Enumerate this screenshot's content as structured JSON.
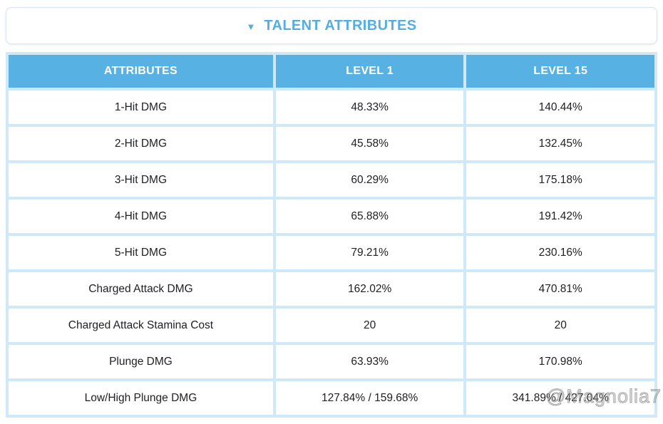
{
  "section": {
    "title": "TALENT ATTRIBUTES",
    "collapse_icon": "caret-down"
  },
  "table": {
    "columns": [
      "ATTRIBUTES",
      "LEVEL 1",
      "LEVEL 15"
    ],
    "rows": [
      {
        "attribute": "1-Hit DMG",
        "level1": "48.33%",
        "level15": "140.44%"
      },
      {
        "attribute": "2-Hit DMG",
        "level1": "45.58%",
        "level15": "132.45%"
      },
      {
        "attribute": "3-Hit DMG",
        "level1": "60.29%",
        "level15": "175.18%"
      },
      {
        "attribute": "4-Hit DMG",
        "level1": "65.88%",
        "level15": "191.42%"
      },
      {
        "attribute": "5-Hit DMG",
        "level1": "79.21%",
        "level15": "230.16%"
      },
      {
        "attribute": "Charged Attack DMG",
        "level1": "162.02%",
        "level15": "470.81%"
      },
      {
        "attribute": "Charged Attack Stamina Cost",
        "level1": "20",
        "level15": "20"
      },
      {
        "attribute": "Plunge DMG",
        "level1": "63.93%",
        "level15": "170.98%"
      },
      {
        "attribute": "Low/High Plunge DMG",
        "level1": "127.84% / 159.68%",
        "level15": "341.89% / 427.04%"
      }
    ]
  },
  "watermark": "@Magnolia7",
  "colors": {
    "accent_blue": "#55aee1",
    "header_bg": "#57b1e3",
    "grid_blue": "#cfe9f8",
    "text": "#202124",
    "watermark_gray": "#9a9a9a"
  }
}
